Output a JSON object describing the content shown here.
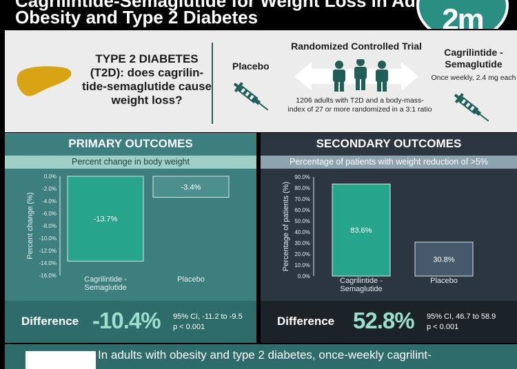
{
  "header": {
    "title_line1": "Cagrilintide-Semaglutide for Weight Loss in Adults with",
    "title_line2": "Obesity and Type 2 Diabetes",
    "logo_text": "2m"
  },
  "intro": {
    "question": "TYPE 2 DIABETES (T2D): does cagrilin-tide-semaglutide cause weight loss?",
    "placebo_label": "Placebo",
    "rct_title": "Randomized Controlled Trial",
    "rct_desc": "1206 adults with T2D and a body-mass-index of 27 or more randomized in a 3:1 ratio",
    "cag_label": "Cagrilintide - Semaglutide",
    "cag_dose": "Once weekly, 2.4 mg each"
  },
  "primary": {
    "title": "PRIMARY OUTCOMES",
    "subtitle": "Percent change in body weight",
    "difference_label": "Difference",
    "difference_value": "-10.4%",
    "ci": "95% CI, -11.2 to -9.5",
    "p": "p < 0.001"
  },
  "secondary": {
    "title": "SECONDARY OUTCOMES",
    "subtitle": "Percentage of patients with weight reduction of >5%",
    "difference_label": "Difference",
    "difference_value": "52.8%",
    "ci": "95% CI, 46.7 to 58.9",
    "p": "p < 0.001"
  },
  "conclusion": {
    "text": "In adults with obesity and type 2 diabetes, once-weekly cagrilint-"
  },
  "chart_data": [
    {
      "type": "bar",
      "ylabel": "Percent change (%)",
      "categories": [
        "Cagrilintide - Semaglutide",
        "Placebo"
      ],
      "values": [
        -13.7,
        -3.4
      ],
      "value_labels": [
        "-13.7%",
        "-3.4%"
      ],
      "ylim": [
        -16,
        0
      ],
      "yticks": [
        0,
        -2,
        -4,
        -6,
        -8,
        -10,
        -12,
        -14,
        -16
      ],
      "tick_labels": [
        "0.0%",
        "-2.0%",
        "-4.0%",
        "-6.0%",
        "-8.0%",
        "-10.0%",
        "-12.0%",
        "-14.0%",
        "-16.0%"
      ],
      "colors": [
        "#27a58c",
        "#4c8f8f"
      ]
    },
    {
      "type": "bar",
      "ylabel": "Percentage of patients (%)",
      "categories": [
        "Cagrilintide - Semaglutide",
        "Placebo"
      ],
      "values": [
        83.6,
        30.8
      ],
      "value_labels": [
        "83.6%",
        "30.8%"
      ],
      "ylim": [
        0,
        90
      ],
      "yticks": [
        90,
        80,
        70,
        60,
        50,
        40,
        30,
        20,
        10,
        0
      ],
      "tick_labels": [
        "90.0%",
        "80.0%",
        "70.0%",
        "60.0%",
        "50.0%",
        "40.0%",
        "30.0%",
        "20.0%",
        "10.0%",
        "0.0%"
      ],
      "colors": [
        "#27a58c",
        "#45596a"
      ]
    }
  ]
}
